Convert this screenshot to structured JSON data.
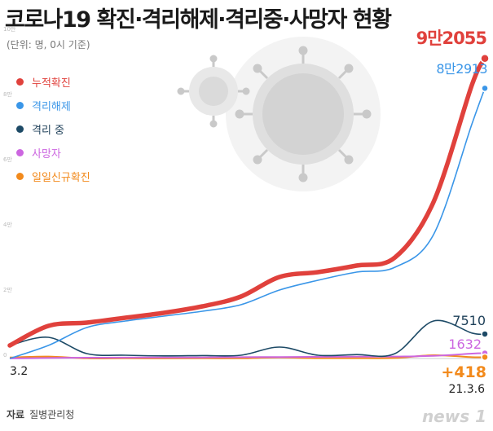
{
  "title": "코로나19 확진·격리해제·격리중·사망자 현황",
  "unit_label": "(단위: 명, 0시 기준)",
  "source": {
    "label": "자료",
    "text": "질병관리청"
  },
  "logo": "news 1",
  "colors": {
    "confirmed": "#e0413c",
    "released": "#3a96e8",
    "isolated": "#1d4a66",
    "deaths": "#cc66e0",
    "new_daily": "#f28a1c"
  },
  "chart_data": {
    "type": "line",
    "title": "코로나19 확진·격리해제·격리중·사망자 현황",
    "ylabel": "(단위: 명, 0시 기준)",
    "xlabel": "",
    "x_tick_labels": [
      "3.2",
      "21.3.6"
    ],
    "y_tick_labels": [
      "0",
      "2만",
      "4만",
      "6만",
      "8만",
      "10만"
    ],
    "ylim": [
      0,
      100000
    ],
    "legend_position": "top-left",
    "x": [
      0,
      30,
      60,
      90,
      120,
      150,
      180,
      210,
      240,
      270,
      300,
      330,
      360,
      370
    ],
    "series": [
      {
        "key": "confirmed",
        "name": "누적확진",
        "color": "#e0413c",
        "values": [
          4000,
          10000,
          11000,
          12500,
          14000,
          16000,
          19000,
          25000,
          26500,
          28500,
          31000,
          48000,
          84000,
          92055
        ]
      },
      {
        "key": "released",
        "name": "격리해제",
        "color": "#3a96e8",
        "values": [
          0,
          4000,
          9500,
          11500,
          13000,
          14500,
          16500,
          21000,
          24000,
          26500,
          28000,
          38000,
          72000,
          82913
        ]
      },
      {
        "key": "isolated",
        "name": "격리 중",
        "color": "#1d4a66",
        "values": [
          4000,
          6500,
          1500,
          1000,
          800,
          900,
          1000,
          3500,
          1000,
          1200,
          1500,
          11500,
          7800,
          7510
        ]
      },
      {
        "key": "deaths",
        "name": "사망자",
        "color": "#cc66e0",
        "values": [
          20,
          150,
          250,
          280,
          300,
          330,
          400,
          450,
          500,
          550,
          600,
          800,
          1500,
          1632
        ]
      },
      {
        "key": "new_daily",
        "name": "일일신규확진",
        "color": "#f28a1c",
        "values": [
          300,
          600,
          40,
          50,
          30,
          40,
          60,
          300,
          100,
          100,
          150,
          1000,
          400,
          418
        ]
      }
    ],
    "end_labels": {
      "confirmed": "9만2055",
      "released": "8만2913",
      "isolated": "7510",
      "deaths": "1632",
      "new_daily": "+418"
    }
  }
}
